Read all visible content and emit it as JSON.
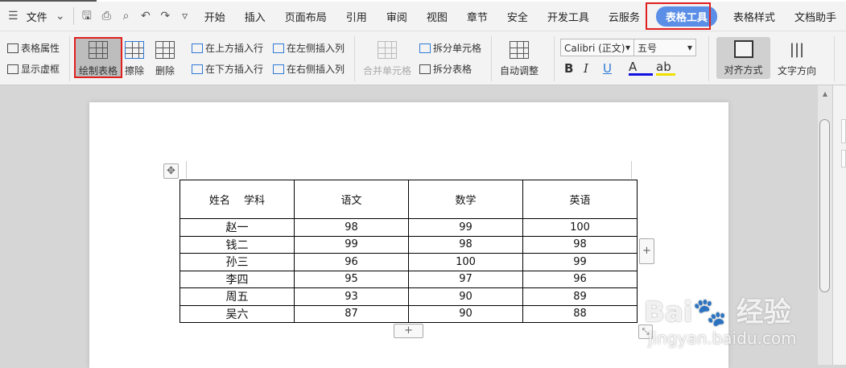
{
  "menu": {
    "file": "文件"
  },
  "tabs": [
    "开始",
    "插入",
    "页面布局",
    "引用",
    "审阅",
    "视图",
    "章节",
    "安全",
    "开发工具",
    "云服务",
    "表格工具",
    "表格样式",
    "文档助手"
  ],
  "active_tab": "表格工具",
  "accent": "#5b8ee6",
  "highlight": "#e0201f",
  "ribbon": {
    "table_props": "表格属性",
    "show_gridlines": "显示虚框",
    "draw_table": "绘制表格",
    "erase": "擦除",
    "delete": "删除",
    "insert_above": "在上方插入行",
    "insert_below": "在下方插入行",
    "insert_left": "在左侧插入列",
    "insert_right": "在右侧插入列",
    "merge_cells": "合并单元格",
    "split_cells": "拆分单元格",
    "split_table": "拆分表格",
    "auto_fit": "自动调整",
    "font": "Calibri (正文)",
    "size": "五号",
    "bold": "B",
    "italic": "I",
    "underline": "U",
    "font_color": "A",
    "highlight": "ab",
    "align": "对齐方式",
    "text_direction": "文字方向"
  },
  "table": {
    "header": [
      "姓名　 学科",
      "语文",
      "数学",
      "英语"
    ],
    "rows": [
      [
        "赵一",
        "98",
        "99",
        "100"
      ],
      [
        "钱二",
        "99",
        "98",
        "98"
      ],
      [
        "孙三",
        "96",
        "100",
        "99"
      ],
      [
        "李四",
        "95",
        "97",
        "96"
      ],
      [
        "周五",
        "93",
        "90",
        "89"
      ],
      [
        "吴六",
        "87",
        "90",
        "88"
      ]
    ]
  },
  "watermark": {
    "brand": "Bai du 经验",
    "url": "jingyan.baidu.com"
  }
}
